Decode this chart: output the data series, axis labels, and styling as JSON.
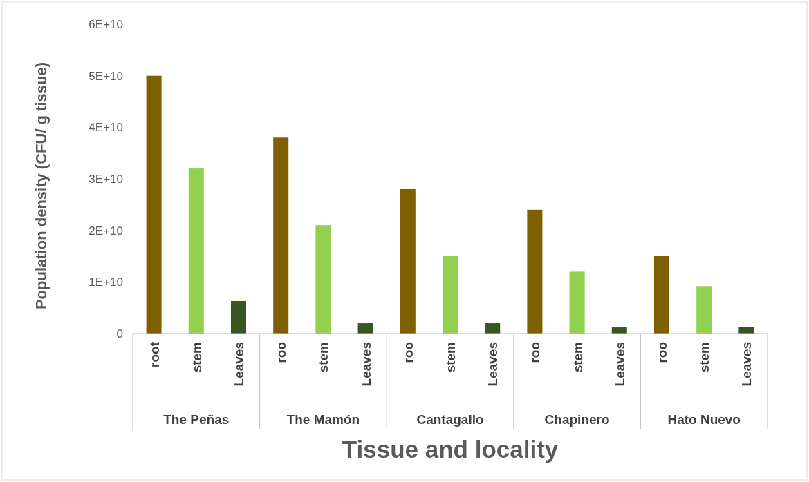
{
  "chart_data": {
    "type": "bar",
    "xlabel": "Tissue and locality",
    "ylabel": "Population density (CFU/ g tissue)",
    "categories": [
      "root",
      "stem",
      "Leaves",
      "roo",
      "stem",
      "Leaves",
      "roo",
      "stem",
      "Leaves",
      "roo",
      "stem",
      "Leaves",
      "roo",
      "stem",
      "Leaves"
    ],
    "values": [
      50000000000.0,
      32000000000.0,
      6300000000.0,
      38000000000.0,
      21000000000.0,
      2000000000.0,
      28000000000.0,
      15000000000.0,
      2000000000.0,
      24000000000.0,
      12000000000.0,
      1200000000.0,
      15000000000.0,
      9200000000.0,
      1300000000.0
    ],
    "colors": [
      "#7f6000",
      "#92d050",
      "#375623",
      "#7f6000",
      "#92d050",
      "#375623",
      "#7f6000",
      "#92d050",
      "#375623",
      "#7f6000",
      "#92d050",
      "#375623",
      "#7f6000",
      "#92d050",
      "#375623"
    ],
    "ylim": [
      0,
      60000000000.0
    ],
    "yticks": [
      0,
      {
        "value": 10000000000.0,
        "label": "1E+10"
      },
      {
        "value": 20000000000.0,
        "label": "2E+10"
      },
      {
        "value": 30000000000.0,
        "label": "3E+10"
      },
      {
        "value": 40000000000.0,
        "label": "4E+10"
      },
      {
        "value": 50000000000.0,
        "label": "5E+10"
      },
      {
        "value": 60000000000.0,
        "label": "6E+10"
      }
    ],
    "annotations": [
      "The Peñas",
      "The Mamón",
      "Cantagallo",
      "Chapinero",
      "Hato Nuevo"
    ]
  }
}
